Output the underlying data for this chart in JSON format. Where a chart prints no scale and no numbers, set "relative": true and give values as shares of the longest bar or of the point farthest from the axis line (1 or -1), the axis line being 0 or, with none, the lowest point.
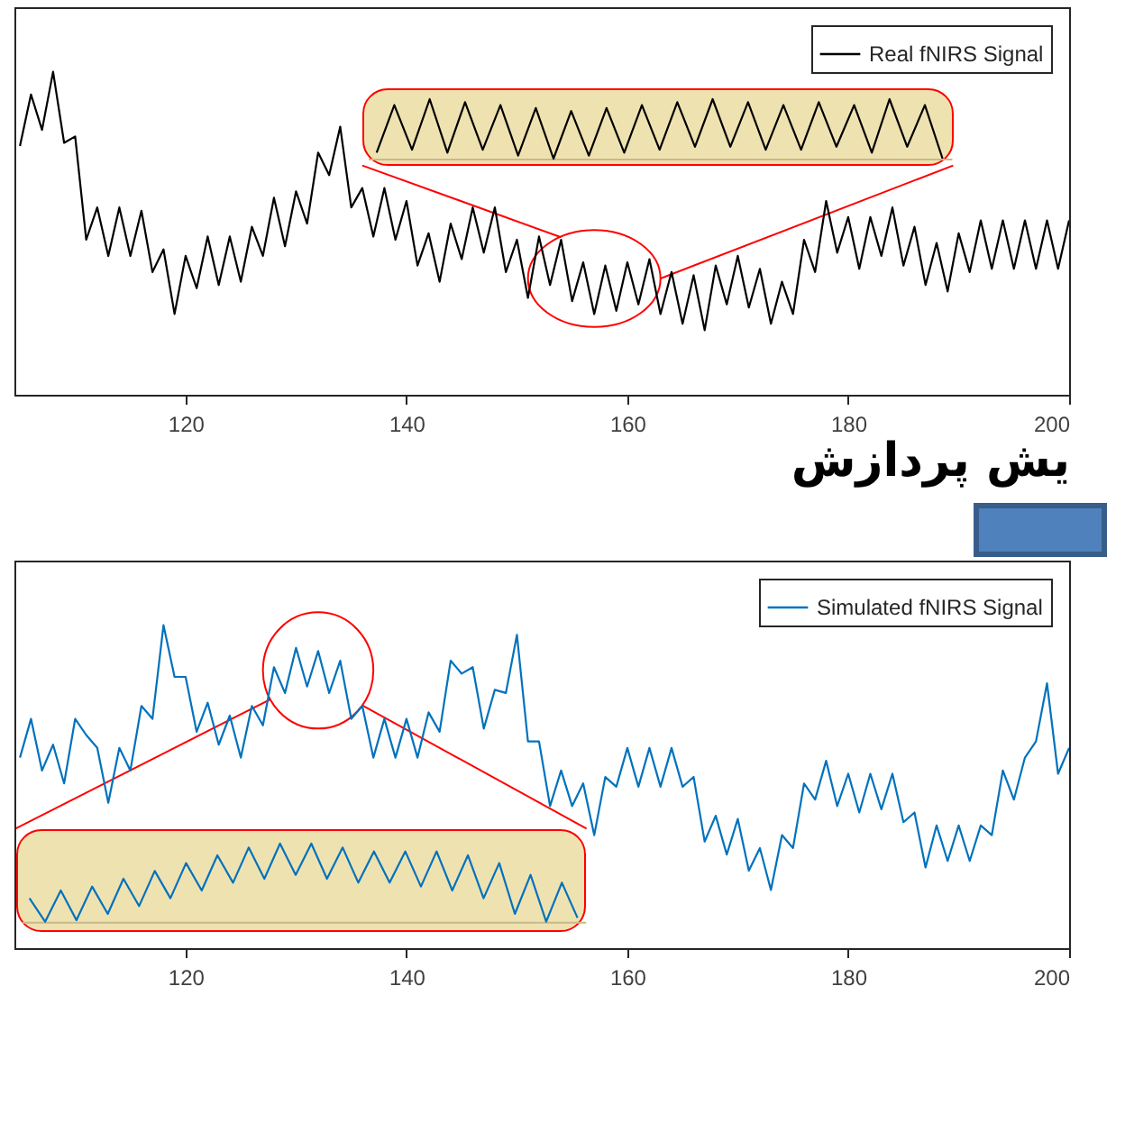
{
  "chart_data": [
    {
      "type": "line",
      "relative": true,
      "xlim": [
        104.5,
        200
      ],
      "xticks": [
        120,
        140,
        160,
        180,
        200
      ],
      "legend": "top right",
      "annotations": [
        "یش پردازش"
      ],
      "x": [
        105,
        106,
        107,
        108,
        109,
        110,
        111,
        112,
        113,
        114,
        115,
        116,
        117,
        118,
        119,
        120,
        121,
        122,
        123,
        124,
        125,
        126,
        127,
        128,
        129,
        130,
        131,
        132,
        133,
        134,
        135,
        136,
        137,
        138,
        139,
        140,
        141,
        142,
        143,
        144,
        145,
        146,
        147,
        148,
        149,
        150,
        151,
        152,
        153,
        154,
        155,
        156,
        157,
        158,
        159,
        160,
        161,
        162,
        163,
        164,
        165,
        166,
        167,
        168,
        169,
        170,
        171,
        172,
        173,
        174,
        175,
        176,
        177,
        178,
        179,
        180,
        181,
        182,
        183,
        184,
        185,
        186,
        187,
        188,
        189,
        190,
        191,
        192,
        193,
        194,
        195,
        196,
        197,
        198,
        199,
        200
      ],
      "series": [
        {
          "name": "Real fNIRS Signal",
          "color": "#000000",
          "values": [
            0.77,
            0.93,
            0.82,
            1.0,
            0.78,
            0.8,
            0.48,
            0.58,
            0.43,
            0.58,
            0.43,
            0.57,
            0.38,
            0.45,
            0.25,
            0.43,
            0.33,
            0.49,
            0.34,
            0.49,
            0.35,
            0.52,
            0.43,
            0.61,
            0.46,
            0.63,
            0.53,
            0.75,
            0.68,
            0.83,
            0.58,
            0.64,
            0.49,
            0.64,
            0.48,
            0.6,
            0.4,
            0.5,
            0.35,
            0.53,
            0.42,
            0.58,
            0.44,
            0.58,
            0.38,
            0.48,
            0.3,
            0.49,
            0.34,
            0.48,
            0.29,
            0.41,
            0.25,
            0.4,
            0.26,
            0.41,
            0.28,
            0.42,
            0.25,
            0.38,
            0.22,
            0.37,
            0.2,
            0.4,
            0.28,
            0.43,
            0.27,
            0.39,
            0.22,
            0.35,
            0.25,
            0.48,
            0.38,
            0.6,
            0.44,
            0.55,
            0.39,
            0.55,
            0.43,
            0.58,
            0.4,
            0.52,
            0.34,
            0.47,
            0.32,
            0.5,
            0.38,
            0.54,
            0.39,
            0.54,
            0.39,
            0.54,
            0.39,
            0.54,
            0.39,
            0.54
          ]
        }
      ]
    },
    {
      "type": "line",
      "relative": true,
      "categories": [
        null,
        null,
        null,
        null,
        null,
        null,
        null,
        null,
        null,
        null,
        null,
        null,
        null,
        null,
        null,
        null,
        null,
        null,
        null,
        null,
        null,
        null,
        null,
        null,
        null,
        null,
        null,
        null,
        null,
        null,
        null,
        null,
        null
      ],
      "series": [
        {
          "color": "#000000",
          "values": [
            0.1,
            0.9,
            0.15,
            1.0,
            0.1,
            0.95,
            0.15,
            0.9,
            0.05,
            0.85,
            0.0,
            0.8,
            0.05,
            0.85,
            0.1,
            0.9,
            0.15,
            0.95,
            0.2,
            1.0,
            0.2,
            0.95,
            0.15,
            0.9,
            0.15,
            0.95,
            0.2,
            0.9,
            0.1,
            1.0,
            0.2,
            0.9,
            0.0
          ]
        }
      ]
    },
    {
      "type": "line",
      "relative": true,
      "xlim": [
        104.5,
        200
      ],
      "xticks": [
        120,
        140,
        160,
        180,
        200
      ],
      "legend": "top right",
      "x": [
        105,
        106,
        107,
        108,
        109,
        110,
        111,
        112,
        113,
        114,
        115,
        116,
        117,
        118,
        119,
        120,
        121,
        122,
        123,
        124,
        125,
        126,
        127,
        128,
        129,
        130,
        131,
        132,
        133,
        134,
        135,
        136,
        137,
        138,
        139,
        140,
        141,
        142,
        143,
        144,
        145,
        146,
        147,
        148,
        149,
        150,
        151,
        152,
        153,
        154,
        155,
        156,
        157,
        158,
        159,
        160,
        161,
        162,
        163,
        164,
        165,
        166,
        167,
        168,
        169,
        170,
        171,
        172,
        173,
        174,
        175,
        176,
        177,
        178,
        179,
        180,
        181,
        182,
        183,
        184,
        185,
        186,
        187,
        188,
        189,
        190,
        191,
        192,
        193,
        194,
        195,
        196,
        197,
        198,
        199,
        200
      ],
      "series": [
        {
          "name": "Simulated fNIRS Signal",
          "color": "#0072bd",
          "values": [
            0.59,
            0.71,
            0.55,
            0.63,
            0.51,
            0.71,
            0.66,
            0.62,
            0.45,
            0.62,
            0.55,
            0.75,
            0.71,
            1.0,
            0.84,
            0.84,
            0.67,
            0.76,
            0.63,
            0.72,
            0.59,
            0.75,
            0.69,
            0.87,
            0.79,
            0.93,
            0.81,
            0.92,
            0.79,
            0.89,
            0.71,
            0.75,
            0.59,
            0.71,
            0.59,
            0.71,
            0.59,
            0.73,
            0.67,
            0.89,
            0.85,
            0.87,
            0.68,
            0.8,
            0.79,
            0.97,
            0.64,
            0.64,
            0.44,
            0.55,
            0.44,
            0.51,
            0.35,
            0.53,
            0.5,
            0.62,
            0.5,
            0.62,
            0.5,
            0.62,
            0.5,
            0.53,
            0.33,
            0.41,
            0.29,
            0.4,
            0.24,
            0.31,
            0.18,
            0.35,
            0.31,
            0.51,
            0.46,
            0.58,
            0.44,
            0.54,
            0.42,
            0.54,
            0.43,
            0.54,
            0.39,
            0.42,
            0.25,
            0.38,
            0.27,
            0.38,
            0.27,
            0.38,
            0.35,
            0.55,
            0.46,
            0.59,
            0.64,
            0.82,
            0.54,
            0.62
          ]
        }
      ]
    },
    {
      "type": "line",
      "relative": true,
      "categories": [
        null,
        null,
        null,
        null,
        null,
        null,
        null,
        null,
        null,
        null,
        null,
        null,
        null,
        null,
        null,
        null,
        null,
        null,
        null,
        null,
        null,
        null,
        null,
        null,
        null,
        null,
        null,
        null,
        null,
        null,
        null,
        null,
        null,
        null,
        null,
        null
      ],
      "series": [
        {
          "color": "#0072bd",
          "values": [
            0.3,
            0.0,
            0.4,
            0.02,
            0.45,
            0.1,
            0.55,
            0.2,
            0.65,
            0.3,
            0.75,
            0.4,
            0.85,
            0.5,
            0.95,
            0.55,
            1.0,
            0.6,
            1.0,
            0.55,
            0.95,
            0.5,
            0.9,
            0.5,
            0.9,
            0.45,
            0.9,
            0.4,
            0.85,
            0.3,
            0.75,
            0.1,
            0.6,
            0.0,
            0.5,
            0.05
          ]
        }
      ]
    }
  ]
}
